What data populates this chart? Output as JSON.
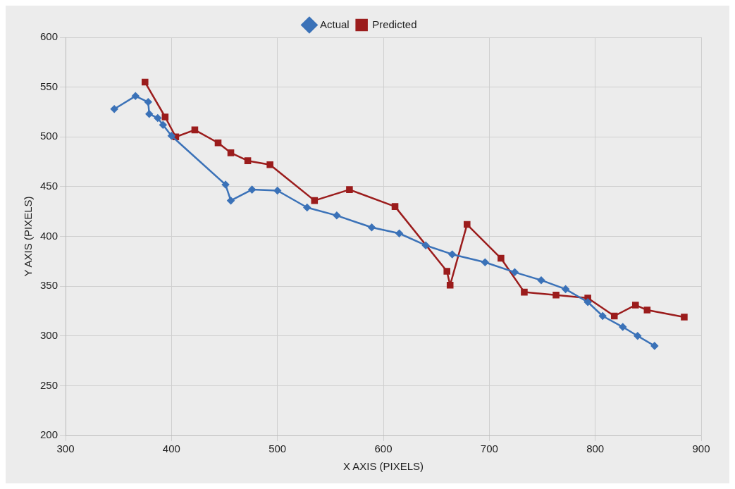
{
  "chart_data": {
    "type": "line",
    "xlabel": "X AXIS (PIXELS)",
    "ylabel": "Y AXIS (PIXELS)",
    "xlim": [
      300,
      900
    ],
    "xticks": [
      300,
      400,
      500,
      600,
      700,
      800,
      900
    ],
    "ylim": [
      200,
      600
    ],
    "yticks": [
      200,
      250,
      300,
      350,
      400,
      450,
      500,
      550,
      600
    ],
    "grid": true,
    "legend": "top",
    "series": [
      {
        "name": "Actual",
        "color": "#3b72b8",
        "marker": "diamond",
        "x": [
          346,
          366,
          378,
          379,
          387,
          392,
          400,
          451,
          456,
          476,
          500,
          528,
          556,
          589,
          615,
          640,
          665,
          696,
          724,
          749,
          772,
          793,
          807,
          826,
          840,
          856
        ],
        "values": [
          528,
          541,
          535,
          523,
          519,
          512,
          501,
          452,
          436,
          447,
          446,
          429,
          421,
          409,
          403,
          391,
          382,
          374,
          364,
          356,
          347,
          334,
          320,
          309,
          300,
          290
        ]
      },
      {
        "name": "Predicted",
        "color": "#9b1c1c",
        "marker": "square",
        "x": [
          375,
          394,
          404,
          422,
          444,
          456,
          472,
          493,
          535,
          568,
          611,
          660,
          663,
          679,
          711,
          733,
          763,
          793,
          818,
          838,
          849,
          884
        ],
        "values": [
          555,
          520,
          500,
          507,
          494,
          484,
          476,
          472,
          436,
          447,
          430,
          365,
          351,
          412,
          378,
          344,
          341,
          338,
          320,
          331,
          326,
          319
        ]
      }
    ]
  }
}
